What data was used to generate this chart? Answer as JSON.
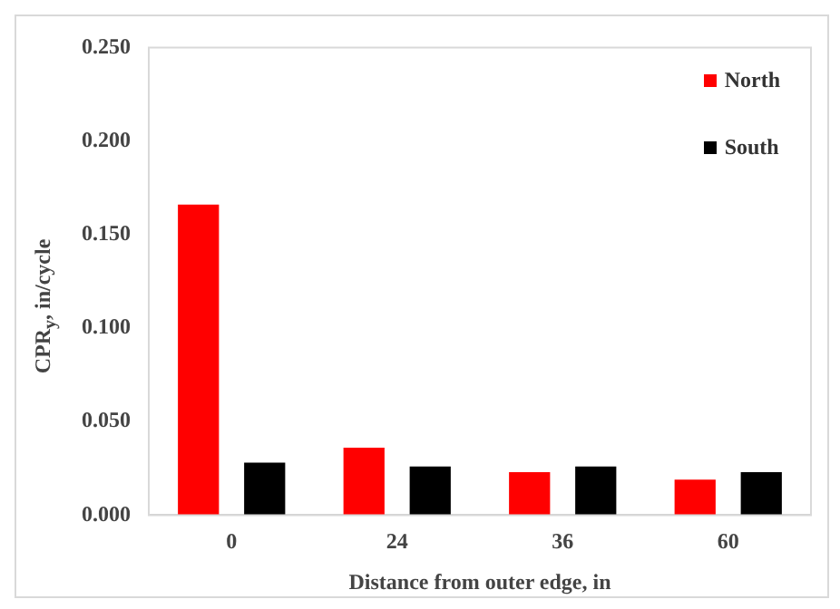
{
  "chart_data": {
    "type": "bar",
    "xlabel": "Distance from outer edge, in",
    "ylabel": "CPR$_{y}$, in/cycle",
    "categories": [
      "0",
      "24",
      "36",
      "60"
    ],
    "series": [
      {
        "name": "North",
        "color": "#ff0000",
        "values": [
          0.166,
          0.036,
          0.023,
          0.019
        ]
      },
      {
        "name": "South",
        "color": "#000000",
        "values": [
          0.028,
          0.026,
          0.026,
          0.023
        ]
      }
    ],
    "ylim": [
      0,
      0.25
    ],
    "yticks": [
      {
        "value": 0,
        "label": "0.000"
      },
      {
        "value": 0.05,
        "label": "0.050"
      },
      {
        "value": 0.1,
        "label": "0.100"
      },
      {
        "value": 0.15,
        "label": "0.150"
      },
      {
        "value": 0.2,
        "label": "0.200"
      },
      {
        "value": 0.25,
        "label": "0.250"
      }
    ],
    "grid": false,
    "legend": "top right"
  }
}
